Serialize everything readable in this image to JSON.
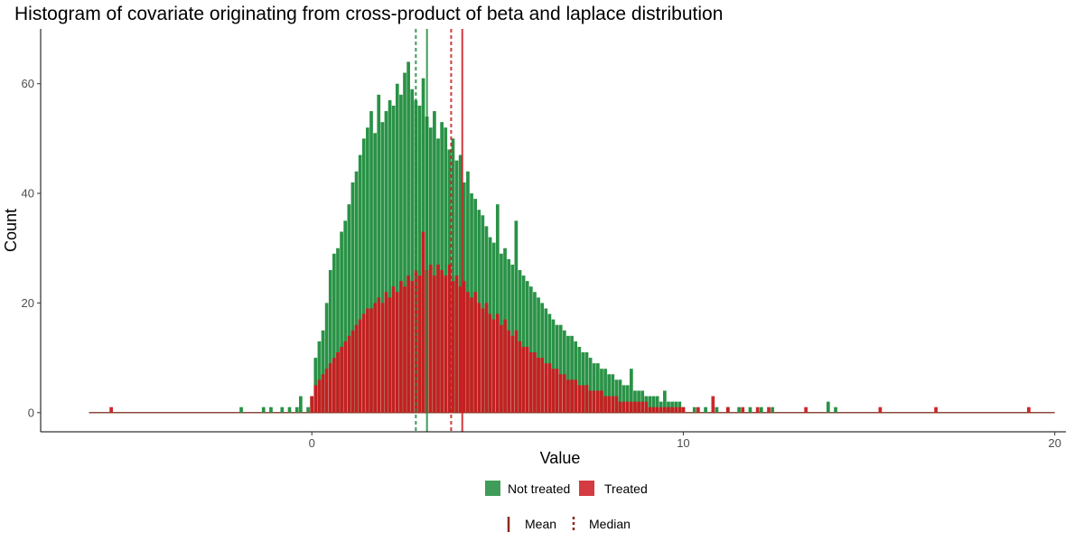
{
  "chart_data": {
    "type": "histogram",
    "title": "Histogram of covariate originating from cross-product of beta and laplace distribution",
    "xlabel": "Value",
    "ylabel": "Count",
    "xlim": [
      -7.3,
      20.3
    ],
    "ylim": [
      -3.5,
      70
    ],
    "x_ticks": [
      0,
      10,
      20
    ],
    "y_ticks": [
      0,
      20,
      40,
      60
    ],
    "grid": false,
    "legend_position": "bottom",
    "series": [
      {
        "name": "Not treated",
        "color": "#1e8c3c",
        "mean": 3.1,
        "median": 2.8,
        "bins": [
          {
            "x": -1.9,
            "y": 1
          },
          {
            "x": -1.3,
            "y": 1
          },
          {
            "x": -1.1,
            "y": 1
          },
          {
            "x": -0.8,
            "y": 1
          },
          {
            "x": -0.6,
            "y": 1
          },
          {
            "x": -0.4,
            "y": 1
          },
          {
            "x": -0.3,
            "y": 3
          },
          {
            "x": -0.1,
            "y": 1
          },
          {
            "x": 0.0,
            "y": 3
          },
          {
            "x": 0.1,
            "y": 10
          },
          {
            "x": 0.2,
            "y": 13
          },
          {
            "x": 0.3,
            "y": 15
          },
          {
            "x": 0.4,
            "y": 20
          },
          {
            "x": 0.5,
            "y": 26
          },
          {
            "x": 0.6,
            "y": 29
          },
          {
            "x": 0.7,
            "y": 30
          },
          {
            "x": 0.8,
            "y": 33
          },
          {
            "x": 0.9,
            "y": 35
          },
          {
            "x": 1.0,
            "y": 38
          },
          {
            "x": 1.1,
            "y": 42
          },
          {
            "x": 1.2,
            "y": 44
          },
          {
            "x": 1.3,
            "y": 47
          },
          {
            "x": 1.4,
            "y": 50
          },
          {
            "x": 1.5,
            "y": 52
          },
          {
            "x": 1.6,
            "y": 55
          },
          {
            "x": 1.7,
            "y": 51
          },
          {
            "x": 1.8,
            "y": 58
          },
          {
            "x": 1.9,
            "y": 53
          },
          {
            "x": 2.0,
            "y": 55
          },
          {
            "x": 2.1,
            "y": 57
          },
          {
            "x": 2.2,
            "y": 56
          },
          {
            "x": 2.3,
            "y": 60
          },
          {
            "x": 2.4,
            "y": 58
          },
          {
            "x": 2.5,
            "y": 62
          },
          {
            "x": 2.6,
            "y": 64
          },
          {
            "x": 2.7,
            "y": 59
          },
          {
            "x": 2.8,
            "y": 57
          },
          {
            "x": 2.9,
            "y": 56
          },
          {
            "x": 3.0,
            "y": 61
          },
          {
            "x": 3.1,
            "y": 54
          },
          {
            "x": 3.2,
            "y": 52
          },
          {
            "x": 3.3,
            "y": 55
          },
          {
            "x": 3.4,
            "y": 50
          },
          {
            "x": 3.5,
            "y": 53
          },
          {
            "x": 3.6,
            "y": 52
          },
          {
            "x": 3.7,
            "y": 48
          },
          {
            "x": 3.8,
            "y": 50
          },
          {
            "x": 3.9,
            "y": 46
          },
          {
            "x": 4.0,
            "y": 47
          },
          {
            "x": 4.1,
            "y": 42
          },
          {
            "x": 4.2,
            "y": 44
          },
          {
            "x": 4.3,
            "y": 40
          },
          {
            "x": 4.4,
            "y": 39
          },
          {
            "x": 4.5,
            "y": 37
          },
          {
            "x": 4.6,
            "y": 36
          },
          {
            "x": 4.7,
            "y": 34
          },
          {
            "x": 4.8,
            "y": 32
          },
          {
            "x": 4.9,
            "y": 31
          },
          {
            "x": 5.0,
            "y": 38
          },
          {
            "x": 5.1,
            "y": 29
          },
          {
            "x": 5.2,
            "y": 30
          },
          {
            "x": 5.3,
            "y": 28
          },
          {
            "x": 5.4,
            "y": 27
          },
          {
            "x": 5.5,
            "y": 35
          },
          {
            "x": 5.6,
            "y": 26
          },
          {
            "x": 5.7,
            "y": 25
          },
          {
            "x": 5.8,
            "y": 24
          },
          {
            "x": 5.9,
            "y": 23
          },
          {
            "x": 6.0,
            "y": 22
          },
          {
            "x": 6.1,
            "y": 21
          },
          {
            "x": 6.2,
            "y": 20
          },
          {
            "x": 6.3,
            "y": 19
          },
          {
            "x": 6.4,
            "y": 18
          },
          {
            "x": 6.5,
            "y": 17
          },
          {
            "x": 6.6,
            "y": 16
          },
          {
            "x": 6.7,
            "y": 16
          },
          {
            "x": 6.8,
            "y": 15
          },
          {
            "x": 6.9,
            "y": 14
          },
          {
            "x": 7.0,
            "y": 14
          },
          {
            "x": 7.1,
            "y": 13
          },
          {
            "x": 7.2,
            "y": 12
          },
          {
            "x": 7.3,
            "y": 11
          },
          {
            "x": 7.4,
            "y": 11
          },
          {
            "x": 7.5,
            "y": 10
          },
          {
            "x": 7.6,
            "y": 9
          },
          {
            "x": 7.7,
            "y": 9
          },
          {
            "x": 7.8,
            "y": 8
          },
          {
            "x": 7.9,
            "y": 8
          },
          {
            "x": 8.0,
            "y": 7
          },
          {
            "x": 8.1,
            "y": 7
          },
          {
            "x": 8.2,
            "y": 6
          },
          {
            "x": 8.3,
            "y": 6
          },
          {
            "x": 8.4,
            "y": 5
          },
          {
            "x": 8.5,
            "y": 5
          },
          {
            "x": 8.6,
            "y": 8
          },
          {
            "x": 8.7,
            "y": 4
          },
          {
            "x": 8.8,
            "y": 4
          },
          {
            "x": 8.9,
            "y": 4
          },
          {
            "x": 9.0,
            "y": 3
          },
          {
            "x": 9.1,
            "y": 3
          },
          {
            "x": 9.2,
            "y": 3
          },
          {
            "x": 9.3,
            "y": 3
          },
          {
            "x": 9.4,
            "y": 2
          },
          {
            "x": 9.5,
            "y": 4
          },
          {
            "x": 9.6,
            "y": 2
          },
          {
            "x": 9.7,
            "y": 2
          },
          {
            "x": 9.8,
            "y": 2
          },
          {
            "x": 9.9,
            "y": 2
          },
          {
            "x": 10.0,
            "y": 1
          },
          {
            "x": 10.3,
            "y": 1
          },
          {
            "x": 10.6,
            "y": 1
          },
          {
            "x": 10.9,
            "y": 1
          },
          {
            "x": 11.2,
            "y": 1
          },
          {
            "x": 11.5,
            "y": 1
          },
          {
            "x": 11.8,
            "y": 1
          },
          {
            "x": 12.1,
            "y": 1
          },
          {
            "x": 12.4,
            "y": 1
          },
          {
            "x": 13.9,
            "y": 2
          },
          {
            "x": 14.1,
            "y": 1
          }
        ]
      },
      {
        "name": "Treated",
        "color": "#cc1a20",
        "mean": 4.05,
        "median": 3.75,
        "bins": [
          {
            "x": -5.4,
            "y": 1
          },
          {
            "x": 0.0,
            "y": 3
          },
          {
            "x": 0.1,
            "y": 5
          },
          {
            "x": 0.2,
            "y": 6
          },
          {
            "x": 0.3,
            "y": 7
          },
          {
            "x": 0.4,
            "y": 8
          },
          {
            "x": 0.5,
            "y": 9
          },
          {
            "x": 0.6,
            "y": 10
          },
          {
            "x": 0.7,
            "y": 11
          },
          {
            "x": 0.8,
            "y": 12
          },
          {
            "x": 0.9,
            "y": 13
          },
          {
            "x": 1.0,
            "y": 14
          },
          {
            "x": 1.1,
            "y": 15
          },
          {
            "x": 1.2,
            "y": 16
          },
          {
            "x": 1.3,
            "y": 17
          },
          {
            "x": 1.4,
            "y": 18
          },
          {
            "x": 1.5,
            "y": 19
          },
          {
            "x": 1.6,
            "y": 19
          },
          {
            "x": 1.7,
            "y": 20
          },
          {
            "x": 1.8,
            "y": 21
          },
          {
            "x": 1.9,
            "y": 20
          },
          {
            "x": 2.0,
            "y": 22
          },
          {
            "x": 2.1,
            "y": 21
          },
          {
            "x": 2.2,
            "y": 23
          },
          {
            "x": 2.3,
            "y": 22
          },
          {
            "x": 2.4,
            "y": 24
          },
          {
            "x": 2.5,
            "y": 23
          },
          {
            "x": 2.6,
            "y": 25
          },
          {
            "x": 2.7,
            "y": 24
          },
          {
            "x": 2.8,
            "y": 26
          },
          {
            "x": 2.9,
            "y": 25
          },
          {
            "x": 3.0,
            "y": 33
          },
          {
            "x": 3.1,
            "y": 26
          },
          {
            "x": 3.2,
            "y": 27
          },
          {
            "x": 3.3,
            "y": 25
          },
          {
            "x": 3.4,
            "y": 27
          },
          {
            "x": 3.5,
            "y": 26
          },
          {
            "x": 3.6,
            "y": 25
          },
          {
            "x": 3.7,
            "y": 27
          },
          {
            "x": 3.8,
            "y": 24
          },
          {
            "x": 3.9,
            "y": 25
          },
          {
            "x": 4.0,
            "y": 23
          },
          {
            "x": 4.1,
            "y": 24
          },
          {
            "x": 4.2,
            "y": 22
          },
          {
            "x": 4.3,
            "y": 21
          },
          {
            "x": 4.4,
            "y": 22
          },
          {
            "x": 4.5,
            "y": 20
          },
          {
            "x": 4.6,
            "y": 19
          },
          {
            "x": 4.7,
            "y": 20
          },
          {
            "x": 4.8,
            "y": 18
          },
          {
            "x": 4.9,
            "y": 17
          },
          {
            "x": 5.0,
            "y": 18
          },
          {
            "x": 5.1,
            "y": 16
          },
          {
            "x": 5.2,
            "y": 17
          },
          {
            "x": 5.3,
            "y": 15
          },
          {
            "x": 5.4,
            "y": 14
          },
          {
            "x": 5.5,
            "y": 15
          },
          {
            "x": 5.6,
            "y": 13
          },
          {
            "x": 5.7,
            "y": 12
          },
          {
            "x": 5.8,
            "y": 12
          },
          {
            "x": 5.9,
            "y": 11
          },
          {
            "x": 6.0,
            "y": 11
          },
          {
            "x": 6.1,
            "y": 10
          },
          {
            "x": 6.2,
            "y": 10
          },
          {
            "x": 6.3,
            "y": 9
          },
          {
            "x": 6.4,
            "y": 9
          },
          {
            "x": 6.5,
            "y": 8
          },
          {
            "x": 6.6,
            "y": 8
          },
          {
            "x": 6.7,
            "y": 7
          },
          {
            "x": 6.8,
            "y": 7
          },
          {
            "x": 6.9,
            "y": 6
          },
          {
            "x": 7.0,
            "y": 6
          },
          {
            "x": 7.1,
            "y": 6
          },
          {
            "x": 7.2,
            "y": 5
          },
          {
            "x": 7.3,
            "y": 5
          },
          {
            "x": 7.4,
            "y": 5
          },
          {
            "x": 7.5,
            "y": 4
          },
          {
            "x": 7.6,
            "y": 4
          },
          {
            "x": 7.7,
            "y": 4
          },
          {
            "x": 7.8,
            "y": 4
          },
          {
            "x": 7.9,
            "y": 3
          },
          {
            "x": 8.0,
            "y": 3
          },
          {
            "x": 8.1,
            "y": 3
          },
          {
            "x": 8.2,
            "y": 3
          },
          {
            "x": 8.3,
            "y": 2
          },
          {
            "x": 8.4,
            "y": 2
          },
          {
            "x": 8.5,
            "y": 2
          },
          {
            "x": 8.6,
            "y": 2
          },
          {
            "x": 8.7,
            "y": 2
          },
          {
            "x": 8.8,
            "y": 2
          },
          {
            "x": 8.9,
            "y": 2
          },
          {
            "x": 9.0,
            "y": 2
          },
          {
            "x": 9.1,
            "y": 1
          },
          {
            "x": 9.2,
            "y": 1
          },
          {
            "x": 9.3,
            "y": 1
          },
          {
            "x": 9.4,
            "y": 1
          },
          {
            "x": 9.5,
            "y": 1
          },
          {
            "x": 9.6,
            "y": 1
          },
          {
            "x": 9.7,
            "y": 1
          },
          {
            "x": 9.8,
            "y": 1
          },
          {
            "x": 9.9,
            "y": 1
          },
          {
            "x": 10.0,
            "y": 1
          },
          {
            "x": 10.4,
            "y": 1
          },
          {
            "x": 10.8,
            "y": 3
          },
          {
            "x": 11.2,
            "y": 1
          },
          {
            "x": 11.6,
            "y": 1
          },
          {
            "x": 12.0,
            "y": 1
          },
          {
            "x": 12.3,
            "y": 1
          },
          {
            "x": 13.3,
            "y": 1
          },
          {
            "x": 15.3,
            "y": 1
          },
          {
            "x": 16.8,
            "y": 1
          },
          {
            "x": 19.3,
            "y": 1
          }
        ]
      }
    ],
    "baseline": {
      "x_start": -6.0,
      "x_end": 20.0,
      "color": "#8b4a3c"
    },
    "line_legend": [
      {
        "name": "Mean",
        "style": "solid",
        "color": "#8b2c20"
      },
      {
        "name": "Median",
        "style": "dashed",
        "color": "#8b2c20"
      }
    ]
  }
}
